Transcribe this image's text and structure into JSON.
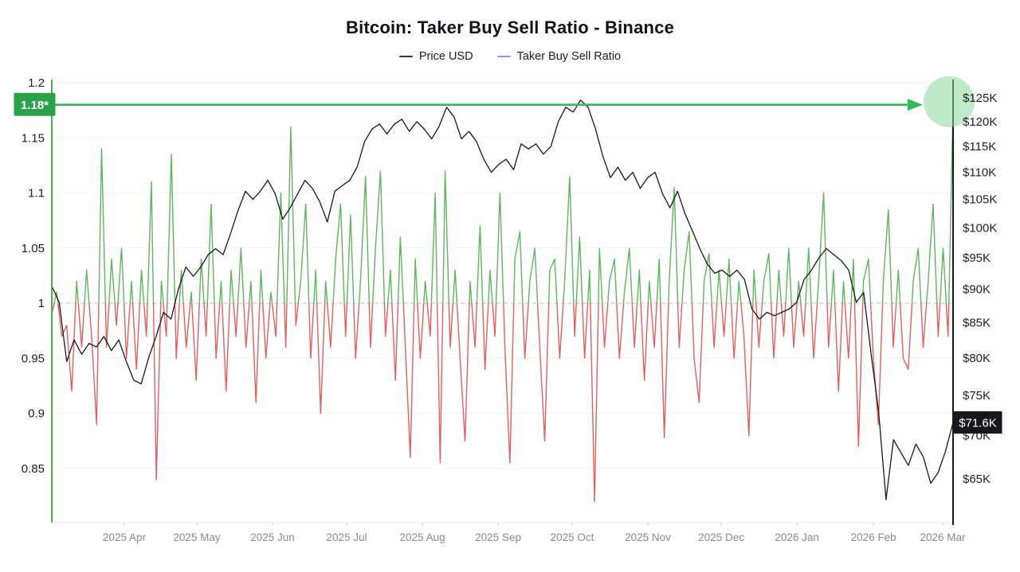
{
  "title": "Bitcoin: Taker Buy Sell Ratio - Binance",
  "legend": [
    {
      "label": "Price USD",
      "color": "#32333e"
    },
    {
      "label": "Taker Buy Sell Ratio",
      "color": "#9093e6"
    }
  ],
  "colors": {
    "background": "#ffffff",
    "grid": "#f3f3f3",
    "baseline_dashed": "#c9c9c9",
    "ratio_above": "#60b561",
    "ratio_below": "#e0605e",
    "price_line": "#17181c",
    "left_axis_line": "#4caf50",
    "right_axis_line": "#17181c",
    "bottom_axis_line": "#e8e8e8",
    "month_tick": "#cfcfcf",
    "x_label_text": "#8b8b8b",
    "axis_label_text": "#1f1f1f",
    "threshold_arrow": "#2dbd5f",
    "threshold_badge_bg": "#2ba14b",
    "threshold_badge_text": "#ffffff",
    "highlight_circle": "#8ed8a0",
    "price_badge_bg": "#16181d",
    "price_badge_text": "#ffffff"
  },
  "annotations": {
    "threshold_label": "1.18*",
    "threshold_value": 1.18,
    "last_price_label": "$71.6K",
    "last_price_value": 71.6
  },
  "chart_data": {
    "type": "line",
    "title": "Bitcoin: Taker Buy Sell Ratio - Binance",
    "grid": "horizontal, very light",
    "legend_position": "top-center",
    "x_axis": {
      "labels": [
        "2025 Apr",
        "2025 May",
        "2025 Jun",
        "2025 Jul",
        "2025 Aug",
        "2025 Sep",
        "2025 Oct",
        "2025 Nov",
        "2025 Dec",
        "2026 Jan",
        "2026 Feb",
        "2026 Mar"
      ],
      "positions": [
        0.0805,
        0.1609,
        0.2449,
        0.3272,
        0.4112,
        0.4952,
        0.5774,
        0.6614,
        0.7428,
        0.8268,
        0.9117,
        0.9885
      ]
    },
    "left_axis": {
      "name": "Taker Buy Sell Ratio",
      "scale": "linear",
      "range": [
        0.8,
        1.203
      ],
      "ticks": [
        1.2,
        1.15,
        1.1,
        1.05,
        1,
        0.95,
        0.9,
        0.85
      ],
      "tick_labels": [
        "1.2",
        "1.15",
        "1.1",
        "1.05",
        "1",
        "0.95",
        "0.9",
        "0.85"
      ],
      "baseline": 1
    },
    "right_axis": {
      "name": "Price USD",
      "scale": "log",
      "range_k": [
        62,
        126
      ],
      "ticks_k": [
        125,
        120,
        115,
        110,
        105,
        100,
        95,
        90,
        85,
        80,
        75,
        70,
        65
      ],
      "tick_labels": [
        "$125K",
        "$120K",
        "$115K",
        "$110K",
        "$105K",
        "$100K",
        "$95K",
        "$90K",
        "$85K",
        "$80K",
        "$75K",
        "$70K",
        "$65K"
      ]
    },
    "series": [
      {
        "name": "Taker Buy Sell Ratio",
        "axis": "left",
        "style": "line colored green above 1.0 and red below 1.0",
        "values": [
          0.99,
          1.01,
          0.97,
          0.98,
          0.92,
          1.02,
          0.96,
          1.03,
          0.97,
          0.89,
          1.14,
          0.96,
          1.04,
          0.98,
          1.05,
          0.95,
          1.02,
          0.94,
          1.03,
          0.97,
          1.11,
          0.84,
          1.02,
          0.97,
          1.135,
          0.95,
          1.03,
          0.96,
          1.01,
          0.93,
          1.04,
          0.97,
          1.09,
          0.95,
          1.02,
          0.92,
          1.03,
          0.97,
          1.05,
          0.96,
          1.02,
          0.91,
          1.03,
          0.95,
          1.01,
          0.97,
          1.1,
          0.96,
          1.16,
          0.98,
          1.02,
          1.09,
          0.95,
          1.03,
          0.9,
          1.02,
          0.96,
          1.04,
          1.09,
          0.97,
          1.08,
          0.95,
          1.02,
          1.115,
          0.96,
          1.05,
          1.12,
          0.97,
          1.03,
          0.93,
          1.06,
          0.96,
          0.86,
          1.04,
          0.95,
          1.02,
          0.97,
          1.1,
          0.855,
          1.12,
          0.96,
          1.03,
          0.95,
          0.875,
          1.02,
          0.96,
          1.07,
          0.94,
          1.03,
          0.97,
          1.1,
          0.96,
          0.855,
          1.04,
          1.065,
          0.95,
          1.02,
          1.05,
          0.96,
          0.875,
          1.03,
          1.04,
          0.95,
          1.02,
          1.115,
          0.97,
          1.06,
          0.95,
          1.03,
          0.82,
          1.05,
          0.96,
          1.02,
          1.04,
          0.95,
          1.01,
          1.05,
          0.96,
          1.03,
          0.93,
          1.02,
          0.96,
          1.04,
          0.878,
          1.02,
          1.105,
          0.96,
          1.03,
          1.065,
          0.95,
          0.91,
          1.02,
          1.045,
          0.96,
          1.03,
          0.97,
          1.04,
          0.95,
          1.02,
          0.97,
          0.88,
          1.03,
          0.96,
          1.02,
          1.045,
          0.95,
          1.03,
          0.97,
          1.05,
          0.96,
          1.02,
          0.97,
          1.05,
          0.95,
          1.02,
          1.1,
          0.96,
          1.03,
          0.92,
          1.02,
          0.95,
          1.04,
          0.87,
          1.02,
          1.04,
          0.95,
          0.89,
          1.02,
          1.085,
          0.96,
          1.03,
          0.95,
          0.94,
          1.02,
          1.05,
          0.96,
          1.02,
          1.09,
          0.97,
          1.05,
          0.97,
          1.18
        ]
      },
      {
        "name": "Price USD",
        "axis": "right",
        "unit": "thousand USD",
        "values": [
          90.5,
          88,
          79.5,
          82.5,
          80.5,
          82,
          81.5,
          83,
          81,
          82.5,
          79.5,
          77,
          76.5,
          80,
          83,
          86.5,
          85.5,
          90,
          93.5,
          92,
          93.5,
          95.5,
          96.5,
          95.5,
          99,
          103,
          106.5,
          105,
          106.5,
          108.5,
          106,
          101.5,
          103.5,
          106,
          108.5,
          107,
          104.5,
          101,
          106.5,
          107.5,
          108.5,
          111,
          116,
          118.5,
          119.5,
          117.5,
          119.5,
          120.5,
          118,
          120,
          118.5,
          116.5,
          119,
          123,
          121,
          116.5,
          118,
          116,
          112.5,
          110,
          111.5,
          112.5,
          110.5,
          115.5,
          114.5,
          115.5,
          113.5,
          115,
          120,
          123,
          122,
          124.5,
          123,
          118.5,
          113,
          109,
          111,
          108.5,
          110,
          107,
          109,
          110,
          106,
          103.5,
          106.5,
          102.5,
          99.5,
          96.5,
          94,
          92.5,
          93,
          92,
          93,
          91.5,
          87,
          85.5,
          86.5,
          86,
          86.5,
          87,
          88,
          91.5,
          93,
          95,
          96.5,
          95.5,
          94.5,
          93,
          88,
          89.5,
          80.5,
          73,
          62.7,
          69.5,
          68,
          66.5,
          69,
          67.5,
          64.5,
          65.7,
          68.2,
          71.6
        ]
      }
    ],
    "annotations": {
      "horizontal_arrow": {
        "y_left_axis": 1.18,
        "label": "1.18*",
        "direction": "right"
      },
      "highlight_circle_at_series_end": true,
      "last_price_marker": {
        "value_k": 71.6,
        "label": "$71.6K"
      }
    }
  }
}
